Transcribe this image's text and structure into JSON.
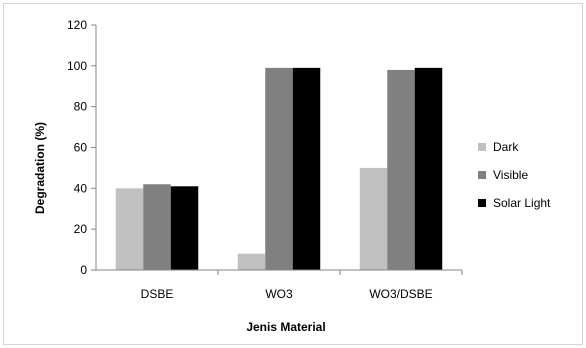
{
  "chart_data": {
    "type": "bar",
    "title": "",
    "xlabel": "Jenis Material",
    "ylabel": "Degradation (%)",
    "ylim": [
      0,
      120
    ],
    "yticks": [
      0,
      20,
      40,
      60,
      80,
      100,
      120
    ],
    "grid": false,
    "legend_position": "right",
    "categories": [
      "DSBE",
      "WO3",
      "WO3/DSBE"
    ],
    "series": [
      {
        "name": "Dark",
        "color": "#c0c0c0",
        "values": [
          40,
          8,
          50
        ]
      },
      {
        "name": "Visible",
        "color": "#808080",
        "values": [
          42,
          99,
          98
        ]
      },
      {
        "name": "Solar Light",
        "color": "#000000",
        "values": [
          41,
          99,
          99
        ]
      }
    ]
  }
}
